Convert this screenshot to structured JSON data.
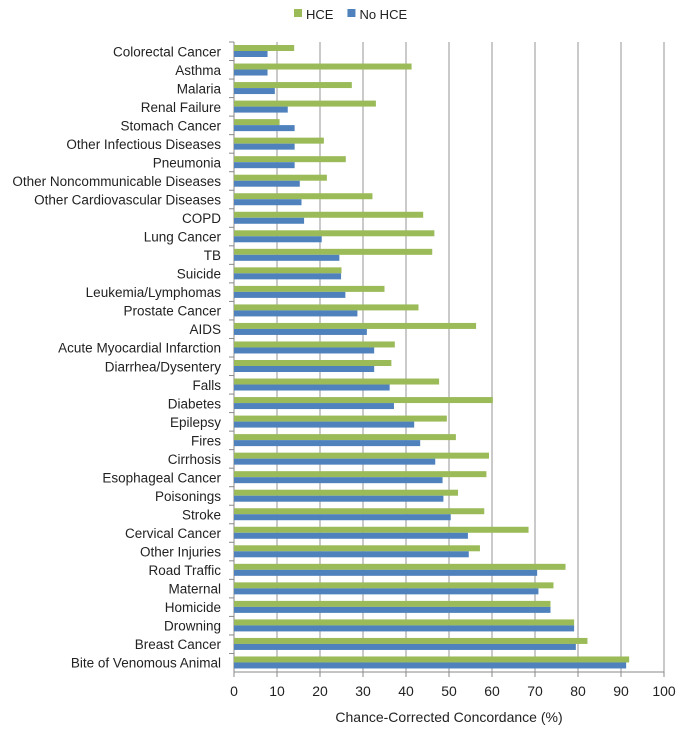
{
  "chart_data": {
    "type": "bar",
    "orientation": "horizontal",
    "title": "",
    "xlabel": "Chance-Corrected Concordance (%)",
    "ylabel": "",
    "xlim": [
      0,
      100
    ],
    "xticks": [
      0,
      10,
      20,
      30,
      40,
      50,
      60,
      70,
      80,
      90,
      100
    ],
    "grid": true,
    "legend_position": "top-center",
    "categories": [
      "Colorectal Cancer",
      "Asthma",
      "Malaria",
      "Renal Failure",
      "Stomach Cancer",
      "Other Infectious Diseases",
      "Pneumonia",
      "Other Noncommunicable Diseases",
      "Other Cardiovascular Diseases",
      "COPD",
      "Lung Cancer",
      "TB",
      "Suicide",
      "Leukemia/Lymphomas",
      "Prostate Cancer",
      "AIDS",
      "Acute Myocardial Infarction",
      "Diarrhea/Dysentery",
      "Falls",
      "Diabetes",
      "Epilepsy",
      "Fires",
      "Cirrhosis",
      "Esophageal Cancer",
      "Poisonings",
      "Stroke",
      "Cervical Cancer",
      "Other Injuries",
      "Road Traffic",
      "Maternal",
      "Homicide",
      "Drowning",
      "Breast Cancer",
      "Bite of Venomous Animal"
    ],
    "series": [
      {
        "name": "HCE",
        "color": "#9bbb59",
        "values": [
          14.0,
          41.3,
          27.4,
          33.0,
          10.6,
          20.9,
          26.0,
          21.6,
          32.2,
          44.0,
          46.6,
          46.1,
          25.0,
          35.0,
          42.9,
          56.3,
          37.4,
          36.6,
          47.7,
          60.2,
          49.5,
          51.6,
          59.3,
          58.7,
          52.1,
          58.2,
          68.5,
          57.2,
          77.1,
          74.3,
          73.6,
          79.1,
          82.2,
          91.9
        ]
      },
      {
        "name": "No HCE",
        "color": "#4f81bd",
        "values": [
          7.8,
          7.8,
          9.5,
          12.5,
          14.1,
          14.1,
          14.1,
          15.3,
          15.7,
          16.3,
          20.4,
          24.5,
          24.9,
          25.9,
          28.7,
          30.9,
          32.6,
          32.6,
          36.2,
          37.2,
          41.9,
          43.3,
          46.8,
          48.5,
          48.7,
          50.4,
          54.4,
          54.6,
          70.5,
          70.8,
          73.6,
          79.1,
          79.5,
          91.2
        ]
      }
    ]
  }
}
